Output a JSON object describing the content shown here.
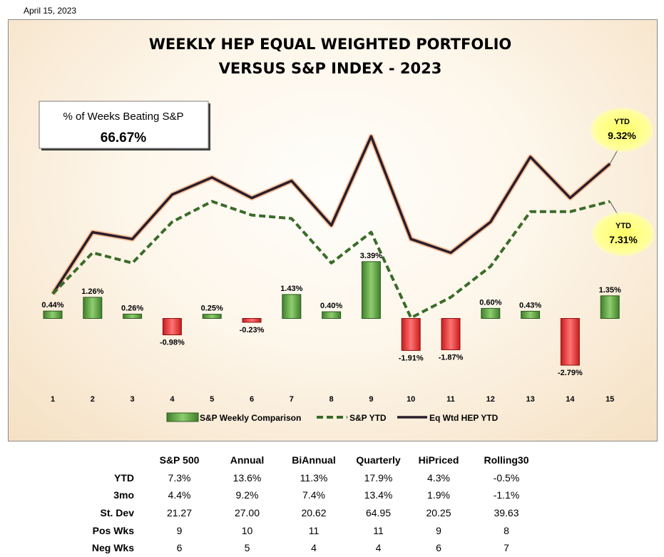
{
  "date": "April 15, 2023",
  "chart_data": {
    "type": "bar+line",
    "title_line1": "WEEKLY HEP EQUAL WEIGHTED PORTFOLIO",
    "title_line2": "VERSUS S&P INDEX - 2023",
    "categories": [
      "1",
      "2",
      "3",
      "4",
      "5",
      "6",
      "7",
      "8",
      "9",
      "10",
      "11",
      "12",
      "13",
      "14",
      "15"
    ],
    "series": [
      {
        "name": "S&P Weekly Comparison",
        "type": "bar",
        "values": [
          0.44,
          1.26,
          0.26,
          -0.98,
          0.25,
          -0.23,
          1.43,
          0.4,
          3.39,
          -1.91,
          -1.87,
          0.6,
          0.43,
          -2.79,
          1.35
        ],
        "labels": [
          "0.44%",
          "1.26%",
          "0.26%",
          "-0.98%",
          "0.25%",
          "-0.23%",
          "1.43%",
          "0.40%",
          "3.39%",
          "-1.91%",
          "-1.87%",
          "0.60%",
          "0.43%",
          "-2.79%",
          "1.35%"
        ],
        "pos_color": "#4e9a3a",
        "neg_color": "#e8312f"
      },
      {
        "name": "S&P YTD",
        "type": "line",
        "style": "dashed",
        "color": "#3a6b2a",
        "values": [
          0.5,
          1.7,
          1.4,
          2.6,
          3.2,
          2.8,
          2.7,
          1.4,
          2.3,
          -0.2,
          0.4,
          1.3,
          2.9,
          2.9,
          3.2
        ]
      },
      {
        "name": "Eq Wtd HEP YTD",
        "type": "line",
        "style": "solid",
        "color": "#2a1e2e",
        "glow": "#f4b183",
        "values": [
          0.5,
          2.3,
          2.1,
          3.4,
          3.9,
          3.3,
          3.8,
          2.5,
          5.1,
          2.1,
          1.7,
          2.6,
          4.5,
          3.3,
          4.3
        ]
      }
    ],
    "ylim": [
      -4.0,
      6.0
    ],
    "legend": "bottom",
    "callout_box": {
      "label": "% of Weeks Beating S&P",
      "value": "66.67%"
    },
    "annotations": [
      {
        "label": "YTD",
        "value": "9.32%",
        "series": "Eq Wtd HEP YTD"
      },
      {
        "label": "YTD",
        "value": "7.31%",
        "series": "S&P YTD"
      }
    ]
  },
  "stats": {
    "headers": [
      "",
      "S&P 500",
      "Annual",
      "BiAnnual",
      "Quarterly",
      "HiPriced",
      "Rolling30"
    ],
    "rows": [
      {
        "label": "YTD",
        "values": [
          "7.3%",
          "13.6%",
          "11.3%",
          "17.9%",
          "4.3%",
          "-0.5%"
        ]
      },
      {
        "label": "3mo",
        "values": [
          "4.4%",
          "9.2%",
          "7.4%",
          "13.4%",
          "1.9%",
          "-1.1%"
        ]
      },
      {
        "label": "St. Dev",
        "values": [
          "21.27",
          "27.00",
          "20.62",
          "64.95",
          "20.25",
          "39.63"
        ]
      },
      {
        "label": "Pos Wks",
        "values": [
          "9",
          "10",
          "11",
          "11",
          "9",
          "8"
        ]
      },
      {
        "label": "Neg Wks",
        "values": [
          "6",
          "5",
          "4",
          "4",
          "6",
          "7"
        ]
      }
    ]
  }
}
